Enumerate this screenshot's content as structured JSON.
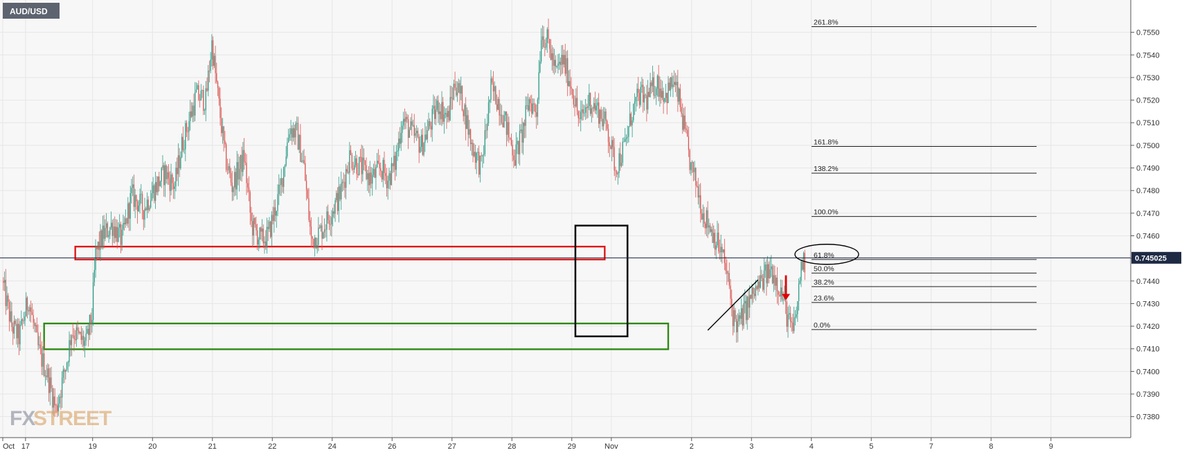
{
  "symbol": "AUD/USD",
  "watermark": {
    "fx": "FX",
    "street": "STREET"
  },
  "chart_data": {
    "type": "candlestick",
    "title": "AUD/USD",
    "ylim": [
      0.7375,
      0.756
    ],
    "y_ticks": [
      0.738,
      0.739,
      0.74,
      0.741,
      0.742,
      0.743,
      0.744,
      0.745,
      0.746,
      0.747,
      0.748,
      0.749,
      0.75,
      0.751,
      0.752,
      0.753,
      0.754,
      0.755
    ],
    "x_ticks": [
      {
        "label": "Oct",
        "slot": 0
      },
      {
        "label": "17",
        "slot": 19
      },
      {
        "label": "19",
        "slot": 75
      },
      {
        "label": "20",
        "slot": 125
      },
      {
        "label": "21",
        "slot": 175
      },
      {
        "label": "22",
        "slot": 225
      },
      {
        "label": "24",
        "slot": 275
      },
      {
        "label": "26",
        "slot": 325
      },
      {
        "label": "27",
        "slot": 375
      },
      {
        "label": "28",
        "slot": 425
      },
      {
        "label": "29",
        "slot": 475
      },
      {
        "label": "Nov",
        "slot": 508
      },
      {
        "label": "2",
        "slot": 575
      },
      {
        "label": "3",
        "slot": 625
      },
      {
        "label": "4",
        "slot": 675
      },
      {
        "label": "5",
        "slot": 725
      },
      {
        "label": "7",
        "slot": 775
      },
      {
        "label": "8",
        "slot": 825
      },
      {
        "label": "9",
        "slot": 875
      }
    ],
    "n_candles": 670,
    "anchors": [
      [
        0,
        0.744
      ],
      [
        8,
        0.742
      ],
      [
        14,
        0.7415
      ],
      [
        22,
        0.7432
      ],
      [
        30,
        0.741
      ],
      [
        38,
        0.7398
      ],
      [
        45,
        0.7383
      ],
      [
        50,
        0.7395
      ],
      [
        54,
        0.7405
      ],
      [
        58,
        0.7418
      ],
      [
        64,
        0.7415
      ],
      [
        70,
        0.7412
      ],
      [
        75,
        0.7425
      ],
      [
        78,
        0.7452
      ],
      [
        84,
        0.746
      ],
      [
        92,
        0.7465
      ],
      [
        100,
        0.7458
      ],
      [
        108,
        0.7478
      ],
      [
        118,
        0.7472
      ],
      [
        126,
        0.748
      ],
      [
        136,
        0.7488
      ],
      [
        144,
        0.7482
      ],
      [
        150,
        0.75
      ],
      [
        162,
        0.7522
      ],
      [
        170,
        0.752
      ],
      [
        175,
        0.7545
      ],
      [
        180,
        0.7522
      ],
      [
        186,
        0.7495
      ],
      [
        192,
        0.7482
      ],
      [
        202,
        0.7495
      ],
      [
        208,
        0.7465
      ],
      [
        216,
        0.7458
      ],
      [
        222,
        0.746
      ],
      [
        232,
        0.748
      ],
      [
        240,
        0.7508
      ],
      [
        246,
        0.7505
      ],
      [
        252,
        0.749
      ],
      [
        258,
        0.7458
      ],
      [
        266,
        0.7462
      ],
      [
        274,
        0.747
      ],
      [
        282,
        0.7478
      ],
      [
        290,
        0.7495
      ],
      [
        300,
        0.749
      ],
      [
        308,
        0.7485
      ],
      [
        316,
        0.749
      ],
      [
        322,
        0.7485
      ],
      [
        328,
        0.7492
      ],
      [
        334,
        0.7512
      ],
      [
        342,
        0.7505
      ],
      [
        350,
        0.75
      ],
      [
        358,
        0.751
      ],
      [
        364,
        0.7518
      ],
      [
        372,
        0.7512
      ],
      [
        378,
        0.7528
      ],
      [
        384,
        0.752
      ],
      [
        392,
        0.75
      ],
      [
        400,
        0.749
      ],
      [
        408,
        0.7525
      ],
      [
        414,
        0.752
      ],
      [
        420,
        0.751
      ],
      [
        428,
        0.7495
      ],
      [
        434,
        0.7505
      ],
      [
        440,
        0.752
      ],
      [
        446,
        0.7515
      ],
      [
        450,
        0.755
      ],
      [
        456,
        0.7545
      ],
      [
        462,
        0.7532
      ],
      [
        468,
        0.7538
      ],
      [
        476,
        0.7525
      ],
      [
        482,
        0.751
      ],
      [
        490,
        0.752
      ],
      [
        498,
        0.7515
      ],
      [
        505,
        0.7508
      ],
      [
        512,
        0.749
      ],
      [
        520,
        0.75
      ],
      [
        526,
        0.7515
      ],
      [
        532,
        0.7522
      ],
      [
        538,
        0.752
      ],
      [
        546,
        0.7528
      ],
      [
        554,
        0.7522
      ],
      [
        560,
        0.7528
      ],
      [
        565,
        0.752
      ],
      [
        570,
        0.7505
      ],
      [
        575,
        0.749
      ],
      [
        580,
        0.7482
      ],
      [
        585,
        0.747
      ],
      [
        590,
        0.7465
      ],
      [
        596,
        0.7458
      ],
      [
        602,
        0.745
      ],
      [
        606,
        0.744
      ],
      [
        610,
        0.7425
      ],
      [
        614,
        0.742
      ],
      [
        620,
        0.7427
      ],
      [
        626,
        0.7433
      ],
      [
        632,
        0.7438
      ],
      [
        637,
        0.7442
      ],
      [
        642,
        0.7445
      ],
      [
        647,
        0.744
      ],
      [
        652,
        0.7432
      ],
      [
        656,
        0.7423
      ],
      [
        660,
        0.7417
      ],
      [
        664,
        0.743
      ],
      [
        667,
        0.7448
      ],
      [
        670,
        0.7448
      ]
    ],
    "current_price": "0.745025",
    "fibonacci": [
      {
        "label": "261.8%",
        "value": 0.75525
      },
      {
        "label": "161.8%",
        "value": 0.74995
      },
      {
        "label": "138.2%",
        "value": 0.74877
      },
      {
        "label": "100.0%",
        "value": 0.74685
      },
      {
        "label": "61.8%",
        "value": 0.74495
      },
      {
        "label": "50.0%",
        "value": 0.74435
      },
      {
        "label": "38.2%",
        "value": 0.74375
      },
      {
        "label": "23.6%",
        "value": 0.74305
      },
      {
        "label": "0.0%",
        "value": 0.74185
      }
    ],
    "zones": [
      {
        "name": "resistance-zone",
        "color": "#e01818",
        "slot_start": 60.5,
        "slot_end": 502.5,
        "top": 0.74552,
        "bottom": 0.74495
      },
      {
        "name": "support-zone",
        "color": "#2e8a13",
        "slot_start": 34.5,
        "slot_end": 555.5,
        "top": 0.74212,
        "bottom": 0.74098
      },
      {
        "name": "focus-box",
        "color": "#111111",
        "slot_start": 478,
        "slot_end": 521.5,
        "top": 0.74645,
        "bottom": 0.74155
      }
    ],
    "colors": {
      "up": "#2b9a86",
      "down": "#d9534f",
      "grid": "#e6e6e6",
      "accent": "#1e2a44",
      "fib": "#000000",
      "arrow": "#e00000"
    }
  }
}
